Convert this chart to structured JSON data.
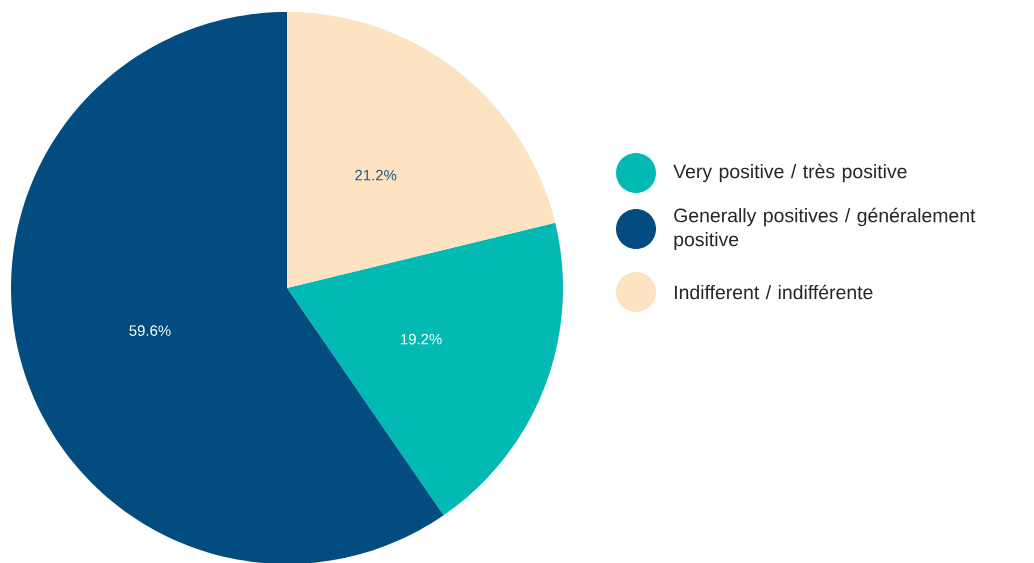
{
  "chart_data": {
    "type": "pie",
    "categories": [
      "Very positive / très positive",
      "Generally positives / généralement positive",
      "Indifferent / indifférente"
    ],
    "values": [
      19.2,
      59.6,
      21.2
    ],
    "colors": [
      "#03b9b4",
      "#024c7f",
      "#fde3c1"
    ],
    "value_labels": [
      "19.2%",
      "59.6%",
      "21.2%"
    ],
    "legend": "right"
  }
}
